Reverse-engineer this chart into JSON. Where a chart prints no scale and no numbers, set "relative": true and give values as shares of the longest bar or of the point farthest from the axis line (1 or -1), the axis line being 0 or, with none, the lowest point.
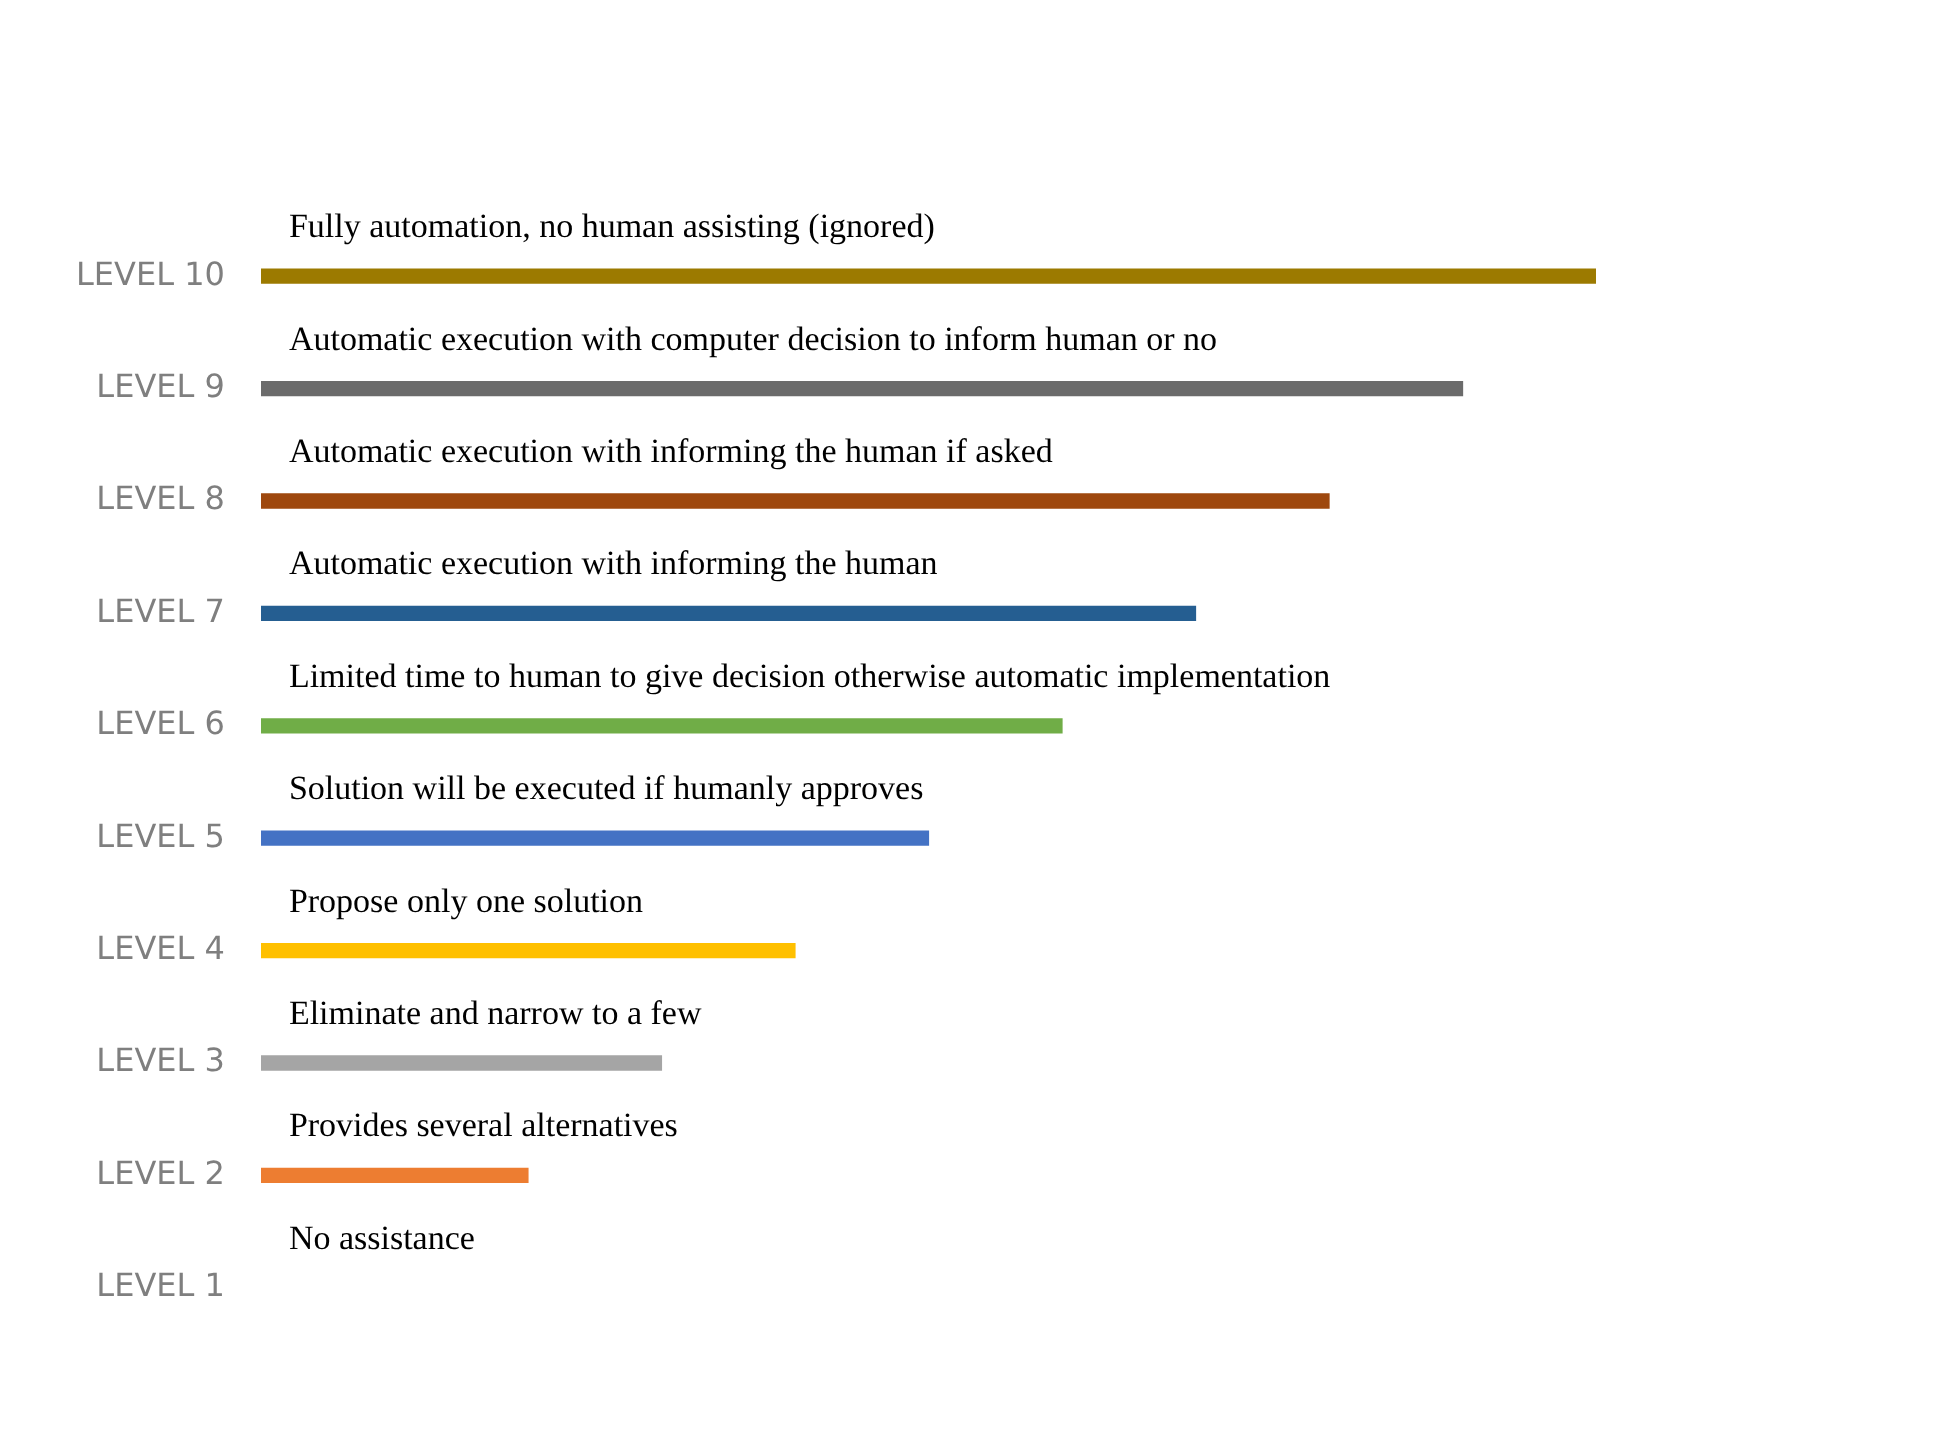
{
  "chart_data": {
    "type": "bar",
    "orientation": "horizontal",
    "relative": true,
    "categories": [
      "LEVEL 10",
      "LEVEL 9",
      "LEVEL 8",
      "LEVEL 7",
      "LEVEL 6",
      "LEVEL 5",
      "LEVEL 4",
      "LEVEL 3",
      "LEVEL 2",
      "LEVEL 1"
    ],
    "values": [
      1,
      0.9,
      0.8,
      0.7,
      0.6,
      0.5,
      0.4,
      0.3,
      0.2,
      null
    ],
    "colors": [
      "#9c7a00",
      "#6b6b6b",
      "#9e480e",
      "#255e91",
      "#70ad47",
      "#4472c4",
      "#ffc000",
      "#a5a5a5",
      "#ed7d31",
      "#ed7d31"
    ],
    "annotations": [
      {
        "text": "Fully automation, no human assisting (ignored)",
        "y": "LEVEL 10"
      },
      {
        "text": "Automatic execution with computer decision to inform human or no",
        "y": "LEVEL 9"
      },
      {
        "text": "Automatic execution with informing the human if asked",
        "y": "LEVEL 8"
      },
      {
        "text": "Automatic execution with informing the human",
        "y": "LEVEL 7"
      },
      {
        "text": "Limited time to human to give decision otherwise automatic implementation",
        "y": "LEVEL 6"
      },
      {
        "text": "Solution will be executed if humanly approves",
        "y": "LEVEL 5"
      },
      {
        "text": "Propose only one solution",
        "y": "LEVEL 4"
      },
      {
        "text": "Eliminate and narrow to a few",
        "y": "LEVEL 3"
      },
      {
        "text": "Provides several alternatives",
        "y": "LEVEL 2"
      },
      "No assistance"
    ],
    "grid": false,
    "legend": false
  }
}
